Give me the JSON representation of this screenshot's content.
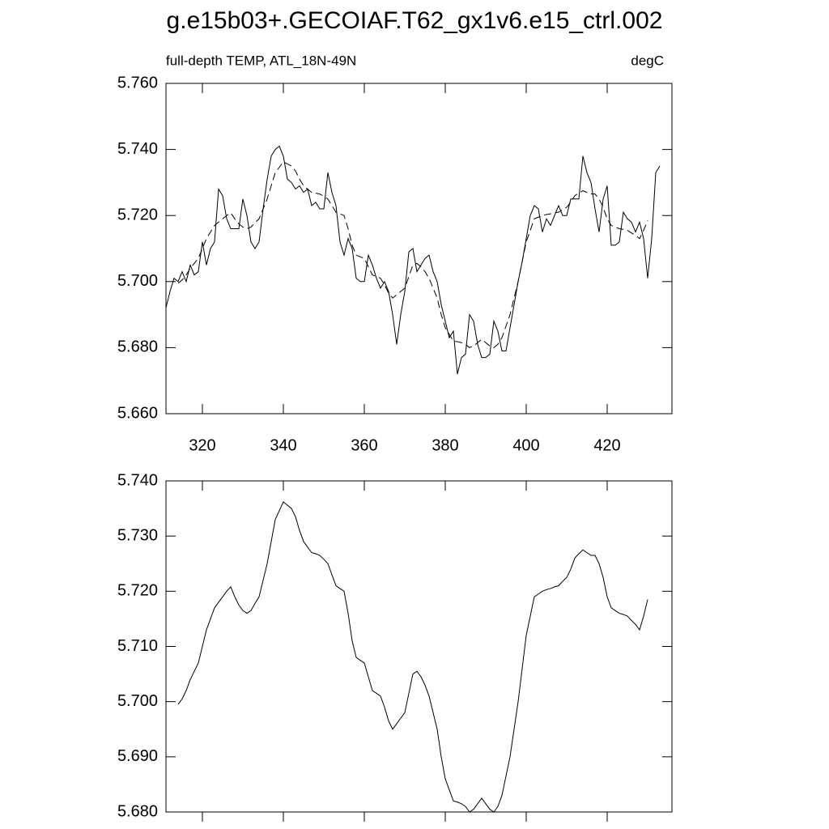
{
  "chart_data": [
    {
      "type": "line",
      "title": "g.e15b03+.GECOIAF.T62_gx1v6.e15_ctrl.002",
      "subtitle": "full-depth TEMP, ATL_18N-49N",
      "units": "degC",
      "xlim": [
        311,
        436
      ],
      "xticks": [
        320,
        340,
        360,
        380,
        400,
        420
      ],
      "ylim": [
        5.66,
        5.76
      ],
      "yticks": [
        {
          "value": 5.66,
          "label": "5.660"
        },
        {
          "value": 5.68,
          "label": "5.680"
        },
        {
          "value": 5.7,
          "label": "5.700"
        },
        {
          "value": 5.72,
          "label": "5.720"
        },
        {
          "value": 5.74,
          "label": "5.740"
        },
        {
          "value": 5.76,
          "label": "5.760"
        }
      ],
      "x": [
        311,
        312,
        313,
        314,
        315,
        316,
        317,
        318,
        319,
        320,
        321,
        322,
        323,
        324,
        325,
        326,
        327,
        328,
        329,
        330,
        331,
        332,
        333,
        334,
        335,
        336,
        337,
        338,
        339,
        340,
        341,
        342,
        343,
        344,
        345,
        346,
        347,
        348,
        349,
        350,
        351,
        352,
        353,
        354,
        355,
        356,
        357,
        358,
        359,
        360,
        361,
        362,
        363,
        364,
        365,
        366,
        367,
        368,
        369,
        370,
        371,
        372,
        373,
        374,
        375,
        376,
        377,
        378,
        379,
        380,
        381,
        382,
        383,
        384,
        385,
        386,
        387,
        388,
        389,
        390,
        391,
        392,
        393,
        394,
        395,
        396,
        397,
        398,
        399,
        400,
        401,
        402,
        403,
        404,
        405,
        406,
        407,
        408,
        409,
        410,
        411,
        412,
        413,
        414,
        415,
        416,
        417,
        418,
        419,
        420,
        421,
        422,
        423,
        424,
        425,
        426,
        427,
        428,
        429,
        430,
        431,
        432,
        433
      ],
      "series": [
        {
          "color": "#000000",
          "style": "solid",
          "values": [
            5.692,
            5.697,
            5.701,
            5.7,
            5.703,
            5.7,
            5.705,
            5.702,
            5.703,
            5.712,
            5.705,
            5.71,
            5.712,
            5.728,
            5.726,
            5.719,
            5.716,
            5.716,
            5.716,
            5.725,
            5.72,
            5.712,
            5.71,
            5.712,
            5.722,
            5.731,
            5.738,
            5.74,
            5.741,
            5.738,
            5.731,
            5.73,
            5.728,
            5.729,
            5.727,
            5.728,
            5.723,
            5.724,
            5.722,
            5.722,
            5.733,
            5.727,
            5.723,
            5.712,
            5.708,
            5.713,
            5.71,
            5.701,
            5.7,
            5.7,
            5.708,
            5.705,
            5.701,
            5.698,
            5.7,
            5.697,
            5.69,
            5.681,
            5.69,
            5.697,
            5.709,
            5.71,
            5.703,
            5.705,
            5.707,
            5.708,
            5.703,
            5.7,
            5.693,
            5.688,
            5.683,
            5.685,
            5.672,
            5.677,
            5.678,
            5.69,
            5.688,
            5.681,
            5.677,
            5.677,
            5.678,
            5.688,
            5.685,
            5.679,
            5.679,
            5.686,
            5.693,
            5.7,
            5.706,
            5.713,
            5.72,
            5.723,
            5.722,
            5.715,
            5.719,
            5.717,
            5.72,
            5.723,
            5.72,
            5.72,
            5.725,
            5.725,
            5.725,
            5.738,
            5.733,
            5.73,
            5.722,
            5.715,
            5.725,
            5.729,
            5.711,
            5.711,
            5.712,
            5.721,
            5.719,
            5.718,
            5.715,
            5.718,
            5.713,
            5.701,
            5.713,
            5.733,
            5.735
          ]
        },
        {
          "color": "#000000",
          "style": "dashed",
          "values": [
            null,
            null,
            null,
            5.6995,
            5.7005,
            5.702,
            5.704,
            5.7055,
            5.707,
            5.71,
            5.713,
            5.715,
            5.717,
            5.718,
            5.719,
            5.72,
            5.7208,
            5.719,
            5.7175,
            5.7165,
            5.716,
            5.7165,
            5.7178,
            5.719,
            5.722,
            5.725,
            5.729,
            5.733,
            5.7346,
            5.7362,
            5.7356,
            5.735,
            5.7335,
            5.731,
            5.729,
            5.728,
            5.727,
            5.7268,
            5.7265,
            5.7258,
            5.725,
            5.723,
            5.721,
            5.7205,
            5.72,
            5.716,
            5.711,
            5.708,
            5.7075,
            5.707,
            5.7045,
            5.702,
            5.7015,
            5.701,
            5.699,
            5.6965,
            5.695,
            5.696,
            5.697,
            5.698,
            5.7015,
            5.705,
            5.7055,
            5.7045,
            5.703,
            5.701,
            5.698,
            5.695,
            5.69,
            5.686,
            5.684,
            5.682,
            5.6818,
            5.6815,
            5.681,
            5.68,
            5.6805,
            5.6815,
            5.6825,
            5.6815,
            5.6805,
            5.68,
            5.681,
            5.683,
            5.6865,
            5.69,
            5.695,
            5.7,
            5.706,
            5.712,
            5.7155,
            5.719,
            5.7195,
            5.72,
            5.7203,
            5.7205,
            5.7208,
            5.721,
            5.7218,
            5.7225,
            5.724,
            5.726,
            5.7268,
            5.7275,
            5.727,
            5.7265,
            5.7265,
            5.725,
            5.7225,
            5.719,
            5.717,
            5.7165,
            5.716,
            5.7158,
            5.7155,
            5.7147,
            5.714,
            5.713,
            5.7155,
            5.7185,
            null,
            null,
            null
          ]
        }
      ]
    },
    {
      "type": "line",
      "xlim": [
        311,
        436
      ],
      "xticks": [
        320,
        340,
        360,
        380,
        400,
        420
      ],
      "ylim": [
        5.68,
        5.74
      ],
      "yticks": [
        {
          "value": 5.68,
          "label": "5.680"
        },
        {
          "value": 5.69,
          "label": "5.690"
        },
        {
          "value": 5.7,
          "label": "5.700"
        },
        {
          "value": 5.71,
          "label": "5.710"
        },
        {
          "value": 5.72,
          "label": "5.720"
        },
        {
          "value": 5.73,
          "label": "5.730"
        },
        {
          "value": 5.74,
          "label": "5.740"
        }
      ],
      "x": [
        314,
        315,
        316,
        317,
        318,
        319,
        320,
        321,
        322,
        323,
        324,
        325,
        326,
        327,
        328,
        329,
        330,
        331,
        332,
        333,
        334,
        335,
        336,
        337,
        338,
        339,
        340,
        341,
        342,
        343,
        344,
        345,
        346,
        347,
        348,
        349,
        350,
        351,
        352,
        353,
        354,
        355,
        356,
        357,
        358,
        359,
        360,
        361,
        362,
        363,
        364,
        365,
        366,
        367,
        368,
        369,
        370,
        371,
        372,
        373,
        374,
        375,
        376,
        377,
        378,
        379,
        380,
        381,
        382,
        383,
        384,
        385,
        386,
        387,
        388,
        389,
        390,
        391,
        392,
        393,
        394,
        395,
        396,
        397,
        398,
        399,
        400,
        401,
        402,
        403,
        404,
        405,
        406,
        407,
        408,
        409,
        410,
        411,
        412,
        413,
        414,
        415,
        416,
        417,
        418,
        419,
        420,
        421,
        422,
        423,
        424,
        425,
        426,
        427,
        428,
        429,
        430
      ],
      "series": [
        {
          "color": "#000000",
          "style": "solid",
          "values": [
            5.6995,
            5.7005,
            5.702,
            5.704,
            5.7055,
            5.707,
            5.71,
            5.713,
            5.715,
            5.717,
            5.718,
            5.719,
            5.72,
            5.7208,
            5.719,
            5.7175,
            5.7165,
            5.716,
            5.7165,
            5.7178,
            5.719,
            5.722,
            5.725,
            5.729,
            5.733,
            5.7346,
            5.7362,
            5.7356,
            5.735,
            5.7335,
            5.731,
            5.729,
            5.728,
            5.727,
            5.7268,
            5.7265,
            5.7258,
            5.725,
            5.723,
            5.721,
            5.7205,
            5.72,
            5.716,
            5.711,
            5.708,
            5.7075,
            5.707,
            5.7045,
            5.702,
            5.7015,
            5.701,
            5.699,
            5.6965,
            5.695,
            5.696,
            5.697,
            5.698,
            5.7015,
            5.705,
            5.7055,
            5.7045,
            5.703,
            5.701,
            5.698,
            5.695,
            5.69,
            5.686,
            5.684,
            5.682,
            5.6818,
            5.6815,
            5.681,
            5.68,
            5.6805,
            5.6815,
            5.6825,
            5.6815,
            5.6805,
            5.68,
            5.681,
            5.683,
            5.6865,
            5.69,
            5.695,
            5.7,
            5.706,
            5.712,
            5.7155,
            5.719,
            5.7195,
            5.72,
            5.7203,
            5.7205,
            5.7208,
            5.721,
            5.7218,
            5.7225,
            5.724,
            5.726,
            5.7268,
            5.7275,
            5.727,
            5.7265,
            5.7265,
            5.725,
            5.7225,
            5.719,
            5.717,
            5.7165,
            5.716,
            5.7158,
            5.7155,
            5.7147,
            5.714,
            5.713,
            5.7155,
            5.7185
          ]
        }
      ]
    }
  ]
}
